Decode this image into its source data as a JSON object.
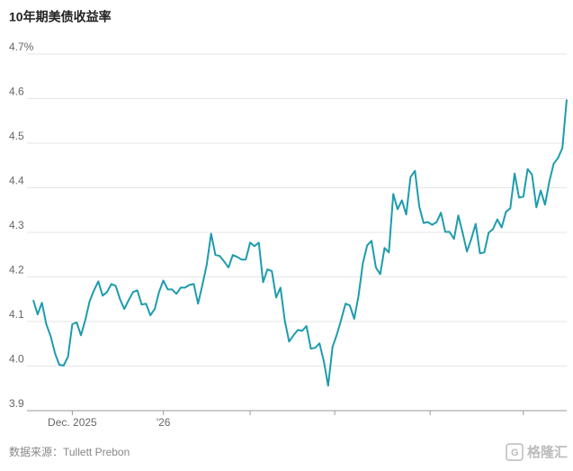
{
  "chart_data": {
    "type": "line",
    "title": "10年期美债收益率",
    "source": "数据来源：Tullett Prebon",
    "watermark": "格隆汇",
    "color": "#1d9cad",
    "grid": true,
    "ylim": [
      3.9,
      4.7
    ],
    "yticks": [
      3.9,
      {
        "value": 4,
        "label": "4.0"
      },
      4.1,
      4.2,
      4.3,
      4.4,
      4.5,
      4.6,
      {
        "value": 4.7,
        "label": "4.7%"
      }
    ],
    "xlim": [
      0,
      123
    ],
    "xticks": [
      {
        "value": 9,
        "label": "Dec. 2025"
      },
      {
        "value": 30,
        "label": "'26"
      },
      {
        "value": 50,
        "label": null
      },
      {
        "value": 69.5,
        "label": null
      },
      {
        "value": 91.5,
        "label": null
      },
      {
        "value": 113,
        "label": null
      }
    ],
    "values": [
      4.148,
      4.116,
      4.142,
      4.094,
      4.067,
      4.029,
      4.003,
      4.001,
      4.021,
      4.094,
      4.098,
      4.069,
      4.104,
      4.146,
      4.17,
      4.19,
      4.158,
      4.166,
      4.184,
      4.18,
      4.15,
      4.128,
      4.148,
      4.166,
      4.17,
      4.138,
      4.14,
      4.114,
      4.128,
      4.166,
      4.192,
      4.172,
      4.172,
      4.162,
      4.176,
      4.176,
      4.182,
      4.184,
      4.14,
      4.182,
      4.227,
      4.297,
      4.249,
      4.247,
      4.235,
      4.221,
      4.249,
      4.245,
      4.239,
      4.239,
      4.277,
      4.269,
      4.277,
      4.188,
      4.217,
      4.213,
      4.154,
      4.176,
      4.102,
      4.055,
      4.069,
      4.081,
      4.079,
      4.09,
      4.039,
      4.041,
      4.051,
      4.011,
      3.956,
      4.043,
      4.071,
      4.104,
      4.14,
      4.136,
      4.106,
      4.158,
      4.231,
      4.271,
      4.281,
      4.221,
      4.206,
      4.265,
      4.255,
      4.386,
      4.352,
      4.372,
      4.34,
      4.424,
      4.438,
      4.358,
      4.321,
      4.323,
      4.317,
      4.323,
      4.344,
      4.301,
      4.301,
      4.285,
      4.338,
      4.299,
      4.257,
      4.285,
      4.319,
      4.253,
      4.255,
      4.299,
      4.307,
      4.329,
      4.311,
      4.346,
      4.354,
      4.432,
      4.378,
      4.38,
      4.442,
      4.43,
      4.356,
      4.394,
      4.362,
      4.414,
      4.454,
      4.467,
      4.489,
      4.598
    ]
  }
}
